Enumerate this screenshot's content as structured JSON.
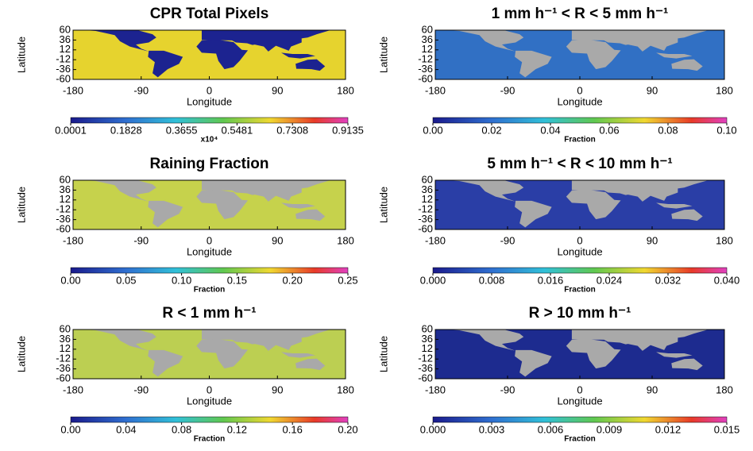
{
  "chart_data": [
    {
      "type": "map",
      "title": "CPR Total Pixels",
      "xlabel": "Longitude",
      "ylabel": "Latitude",
      "xlim": [
        -180,
        180
      ],
      "ylim": [
        -60,
        60
      ],
      "xticks": [
        -180,
        -90,
        0,
        90,
        180
      ],
      "yticks": [
        60,
        36,
        12,
        -12,
        -36,
        -60
      ],
      "ocean_color": "#e6d32e",
      "land_color": "#1c2390",
      "colorbar": {
        "label": "x10⁴",
        "lim": [
          0.0001,
          0.9135
        ],
        "ticks": [
          0.0001,
          0.1828,
          0.3655,
          0.5481,
          0.7308,
          0.9135
        ]
      }
    },
    {
      "type": "map",
      "title": "1 mm h⁻¹ < R < 5 mm h⁻¹",
      "xlabel": "Longitude",
      "ylabel": "Latitude",
      "xlim": [
        -180,
        180
      ],
      "ylim": [
        -60,
        60
      ],
      "xticks": [
        -180,
        -90,
        0,
        90,
        180
      ],
      "yticks": [
        60,
        36,
        12,
        -12,
        -36,
        -60
      ],
      "ocean_color": "#3170c4",
      "land_color": "#a9a9a9",
      "colorbar": {
        "label": "Fraction",
        "lim": [
          0,
          0.1
        ],
        "ticks": [
          {
            "value": 0,
            "label": "0.00"
          },
          {
            "value": 0.02,
            "label": "0.02"
          },
          {
            "value": 0.04,
            "label": "0.04"
          },
          {
            "value": 0.06,
            "label": "0.06"
          },
          {
            "value": 0.08,
            "label": "0.08"
          },
          {
            "value": 0.1,
            "label": "0.10"
          }
        ]
      }
    },
    {
      "type": "map",
      "title": "Raining Fraction",
      "xlabel": "Longitude",
      "ylabel": "Latitude",
      "xlim": [
        -180,
        180
      ],
      "ylim": [
        -60,
        60
      ],
      "xticks": [
        -180,
        -90,
        0,
        90,
        180
      ],
      "yticks": [
        60,
        36,
        12,
        -12,
        -36,
        -60
      ],
      "ocean_color": "#c6d24c",
      "land_color": "#a9a9a9",
      "colorbar": {
        "label": "Fraction",
        "lim": [
          0,
          0.25
        ],
        "ticks": [
          {
            "value": 0,
            "label": "0.00"
          },
          {
            "value": 0.05,
            "label": "0.05"
          },
          {
            "value": 0.1,
            "label": "0.10"
          },
          {
            "value": 0.15,
            "label": "0.15"
          },
          {
            "value": 0.2,
            "label": "0.20"
          },
          0.25
        ]
      }
    },
    {
      "type": "map",
      "title": "5 mm h⁻¹ < R < 10 mm h⁻¹",
      "xlabel": "Longitude",
      "ylabel": "Latitude",
      "xlim": [
        -180,
        180
      ],
      "ylim": [
        -60,
        60
      ],
      "xticks": [
        -180,
        -90,
        0,
        90,
        180
      ],
      "yticks": [
        60,
        36,
        12,
        -12,
        -36,
        -60
      ],
      "ocean_color": "#2a3ea6",
      "land_color": "#a9a9a9",
      "colorbar": {
        "label": "Fraction",
        "lim": [
          0,
          0.04
        ],
        "ticks": [
          {
            "value": 0,
            "label": "0.000"
          },
          {
            "value": 0.008,
            "label": "0.008"
          },
          {
            "value": 0.016,
            "label": "0.016"
          },
          {
            "value": 0.024,
            "label": "0.024"
          },
          {
            "value": 0.032,
            "label": "0.032"
          },
          {
            "value": 0.04,
            "label": "0.040"
          }
        ]
      }
    },
    {
      "type": "map",
      "title": "R < 1 mm h⁻¹",
      "xlabel": "Longitude",
      "ylabel": "Latitude",
      "xlim": [
        -180,
        180
      ],
      "ylim": [
        -60,
        60
      ],
      "xticks": [
        -180,
        -90,
        0,
        90,
        180
      ],
      "yticks": [
        60,
        36,
        12,
        -12,
        -36,
        -60
      ],
      "ocean_color": "#bccf52",
      "land_color": "#a9a9a9",
      "colorbar": {
        "label": "Fraction",
        "lim": [
          0,
          0.2
        ],
        "ticks": [
          {
            "value": 0,
            "label": "0.00"
          },
          {
            "value": 0.04,
            "label": "0.04"
          },
          {
            "value": 0.08,
            "label": "0.08"
          },
          {
            "value": 0.12,
            "label": "0.12"
          },
          {
            "value": 0.16,
            "label": "0.16"
          },
          {
            "value": 0.2,
            "label": "0.20"
          }
        ]
      }
    },
    {
      "type": "map",
      "title": "R > 10 mm h⁻¹",
      "xlabel": "Longitude",
      "ylabel": "Latitude",
      "xlim": [
        -180,
        180
      ],
      "ylim": [
        -60,
        60
      ],
      "xticks": [
        -180,
        -90,
        0,
        90,
        180
      ],
      "yticks": [
        60,
        36,
        12,
        -12,
        -36,
        -60
      ],
      "ocean_color": "#1d2b8f",
      "land_color": "#a9a9a9",
      "colorbar": {
        "label": "Fraction",
        "lim": [
          0,
          0.015
        ],
        "ticks": [
          {
            "value": 0,
            "label": "0.000"
          },
          {
            "value": 0.003,
            "label": "0.003"
          },
          {
            "value": 0.006,
            "label": "0.006"
          },
          {
            "value": 0.009,
            "label": "0.009"
          },
          {
            "value": 0.012,
            "label": "0.012"
          },
          {
            "value": 0.015,
            "label": "0.015"
          }
        ]
      }
    }
  ]
}
